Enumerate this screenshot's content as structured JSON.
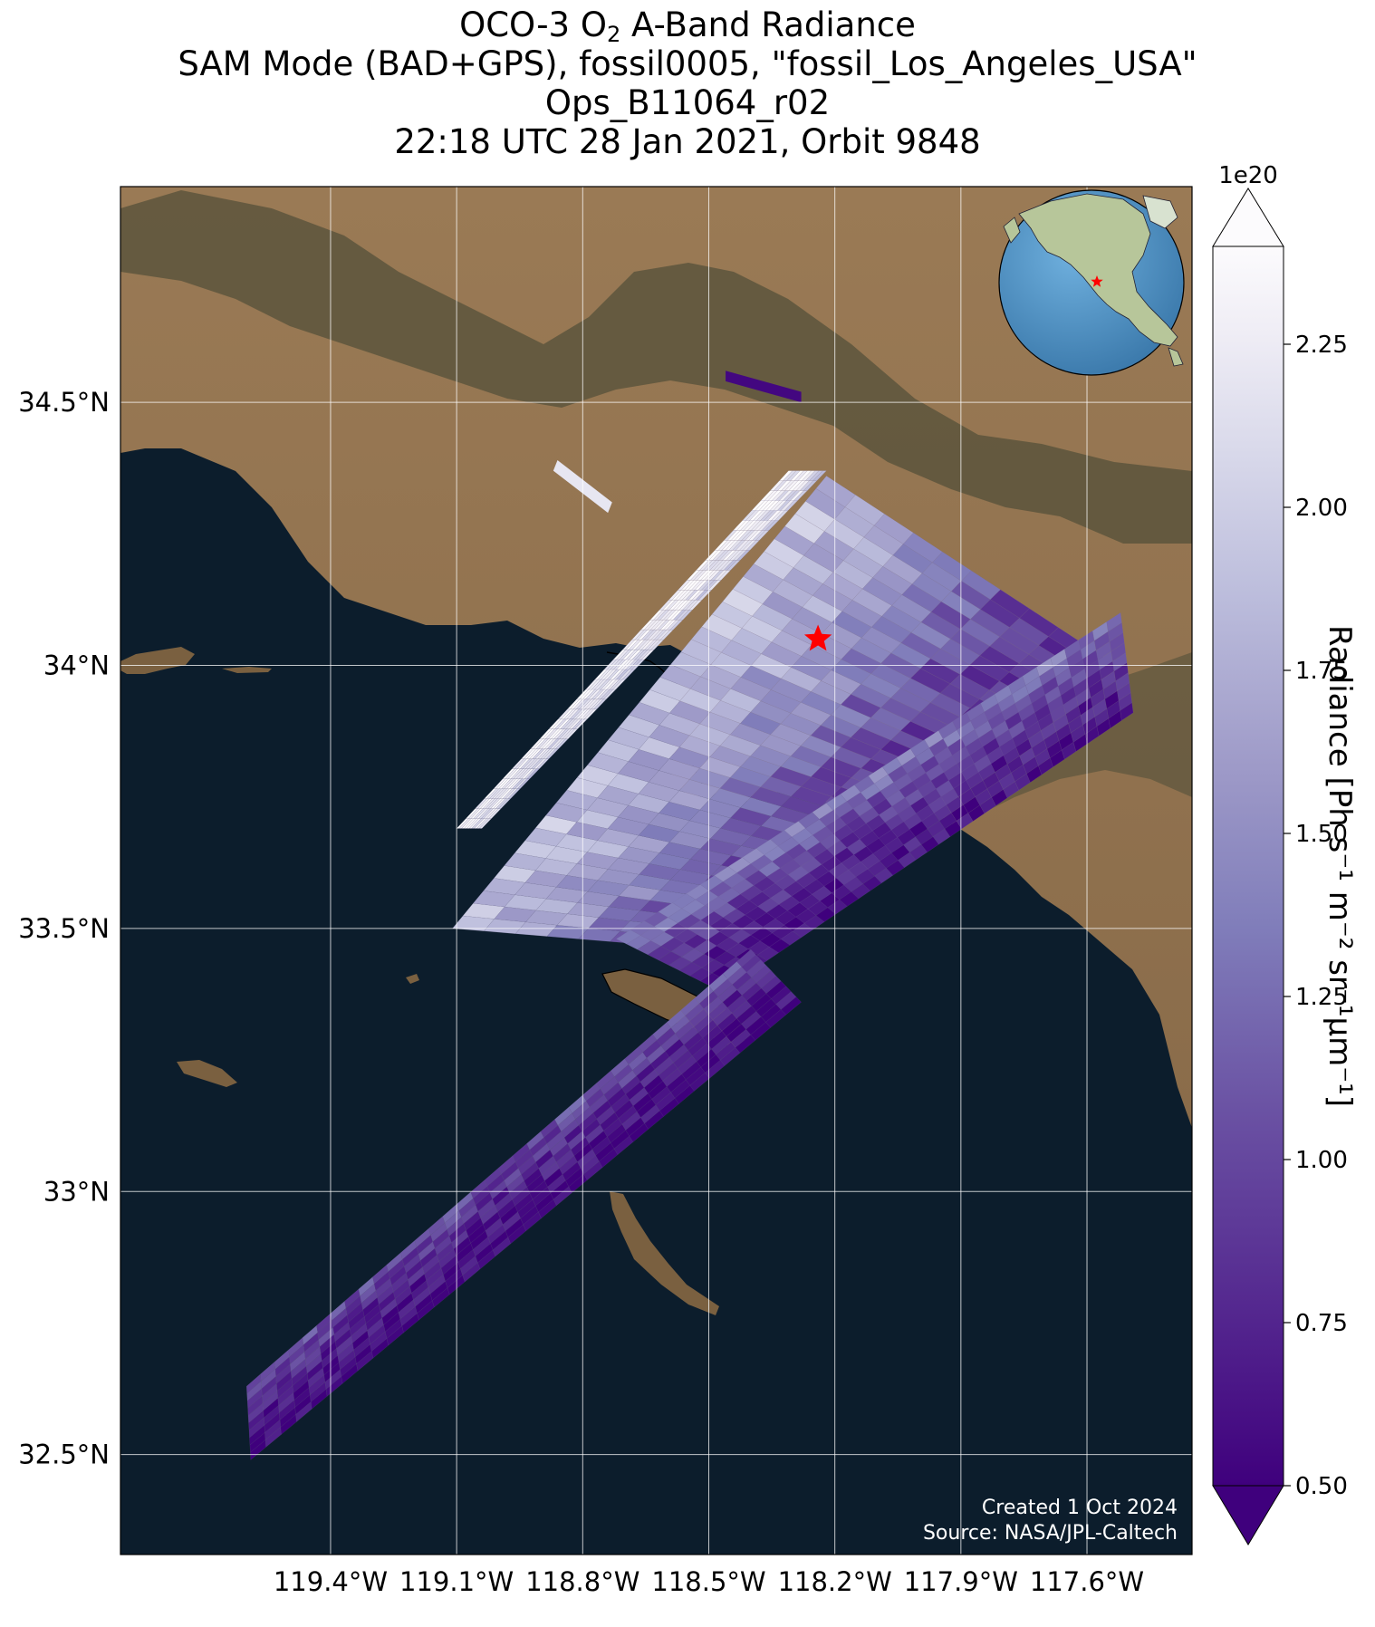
{
  "title": {
    "line1_prefix": "OCO-3 O",
    "line1_sub": "2",
    "line1_suffix": " A-Band Radiance",
    "line2": "SAM Mode (BAD+GPS), fossil0005, \"fossil_Los_Angeles_USA\"",
    "line3": "Ops_B11064_r02",
    "line4": "22:18 UTC 28 Jan 2021, Orbit 9848"
  },
  "map": {
    "lon_range": [
      -119.9,
      -117.35
    ],
    "lat_range": [
      32.31,
      34.91
    ],
    "lat_ticks": [
      {
        "value": 34.5,
        "label": "34.5°N"
      },
      {
        "value": 34.0,
        "label": "34°N"
      },
      {
        "value": 33.5,
        "label": "33.5°N"
      },
      {
        "value": 33.0,
        "label": "33°N"
      },
      {
        "value": 32.5,
        "label": "32.5°N"
      }
    ],
    "lon_ticks": [
      {
        "value": -119.4,
        "label": "119.4°W"
      },
      {
        "value": -119.1,
        "label": "119.1°W"
      },
      {
        "value": -118.8,
        "label": "118.8°W"
      },
      {
        "value": -118.5,
        "label": "118.5°W"
      },
      {
        "value": -118.2,
        "label": "118.2°W"
      },
      {
        "value": -117.9,
        "label": "117.9°W"
      },
      {
        "value": -117.6,
        "label": "117.6°W"
      }
    ],
    "target": {
      "name": "fossil_Los_Angeles_USA",
      "lon": -118.24,
      "lat": 34.05,
      "marker": "star",
      "color": "#ff0000"
    },
    "ocean_color": "#0c1d2c",
    "land_color": "#7f6242",
    "mountain_color": "#4e4b32",
    "grid": true,
    "inset_globe": {
      "location": "top-right",
      "ocean_color": "#4f93c8",
      "marker_color": "#ff0000"
    },
    "credit": {
      "line1": "Created 1 Oct 2024",
      "line2": "Source: NASA/JPL-Caltech"
    }
  },
  "colorbar": {
    "label": "Radiance [Ph s⁻¹ m⁻² sr⁻¹μm⁻¹]",
    "multiplier": "1e20",
    "colormap": "Purples_r",
    "vmin": 0.5,
    "vmax": 2.4,
    "extend": "both",
    "ticks": [
      {
        "value": 0.5,
        "label": "0.50"
      },
      {
        "value": 0.75,
        "label": "0.75"
      },
      {
        "value": 1.0,
        "label": "1.00"
      },
      {
        "value": 1.25,
        "label": "1.25"
      },
      {
        "value": 1.5,
        "label": "1.50"
      },
      {
        "value": 1.75,
        "label": "1.75"
      },
      {
        "value": 2.0,
        "label": "2.00"
      },
      {
        "value": 2.25,
        "label": "2.25"
      }
    ]
  },
  "swaths": [
    {
      "name": "north-fragment",
      "corners": [
        [
          -118.46,
          34.56
        ],
        [
          -118.28,
          34.52
        ],
        [
          -118.28,
          34.5
        ],
        [
          -118.46,
          34.54
        ]
      ],
      "value": 0.55
    },
    {
      "name": "north-fragment-2",
      "corners": [
        [
          -118.86,
          34.39
        ],
        [
          -118.73,
          34.31
        ],
        [
          -118.74,
          34.29
        ],
        [
          -118.87,
          34.37
        ]
      ],
      "value": 2.2
    },
    {
      "name": "swath-1",
      "corners": [
        [
          -119.1,
          33.69
        ],
        [
          -118.31,
          34.37
        ],
        [
          -118.22,
          34.37
        ],
        [
          -119.04,
          33.69
        ]
      ],
      "profile": [
        2.35,
        2.3,
        2.2,
        2.0
      ]
    },
    {
      "name": "swath-2",
      "corners": [
        [
          -119.11,
          33.5
        ],
        [
          -118.22,
          34.36
        ],
        [
          -117.53,
          34.0
        ],
        [
          -118.36,
          33.45
        ]
      ],
      "profile": [
        1.9,
        1.6,
        1.0,
        0.7
      ]
    },
    {
      "name": "swath-3",
      "corners": [
        [
          -118.72,
          33.48
        ],
        [
          -117.52,
          34.1
        ],
        [
          -117.49,
          33.91
        ],
        [
          -118.47,
          33.38
        ]
      ],
      "profile": [
        1.4,
        1.0,
        0.75,
        0.6
      ]
    },
    {
      "name": "swath-4",
      "corners": [
        [
          -119.6,
          32.63
        ],
        [
          -118.4,
          33.46
        ],
        [
          -118.28,
          33.36
        ],
        [
          -119.59,
          32.49
        ]
      ],
      "profile": [
        1.1,
        0.8,
        0.6,
        0.55
      ]
    }
  ]
}
